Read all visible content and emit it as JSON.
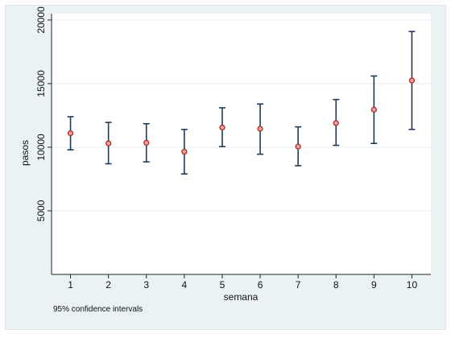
{
  "chart_data": {
    "type": "scatter",
    "title": "",
    "xlabel": "semana",
    "ylabel": "pasos",
    "note": "95% confidence intervals",
    "x": [
      1,
      2,
      3,
      4,
      5,
      6,
      7,
      8,
      9,
      10
    ],
    "x_tick_labels": [
      "1",
      "2",
      "3",
      "4",
      "5",
      "6",
      "7",
      "8",
      "9",
      "10"
    ],
    "y_ticks": [
      5000,
      10000,
      15000,
      20000
    ],
    "y_tick_labels": [
      "5000",
      "10000",
      "15000",
      "20000"
    ],
    "ylim": [
      0,
      20500
    ],
    "grid": true,
    "series": [
      {
        "values": [
          11100,
          10300,
          10350,
          9650,
          11550,
          11450,
          10050,
          11900,
          12950,
          15250
        ],
        "ci_low": [
          9800,
          8700,
          8850,
          7900,
          10050,
          9450,
          8550,
          10150,
          10300,
          11400
        ],
        "ci_high": [
          12400,
          11950,
          11850,
          11400,
          13100,
          13400,
          11600,
          13750,
          15600,
          19100
        ]
      }
    ],
    "colors": {
      "plot_background": "#ffffff",
      "outer_background": "#eaf2f3",
      "gridline": "#e6eef0",
      "error_bar": "#1f3b57",
      "marker_edge": "#b02a2a",
      "marker_fill": "#e8a39c"
    }
  }
}
